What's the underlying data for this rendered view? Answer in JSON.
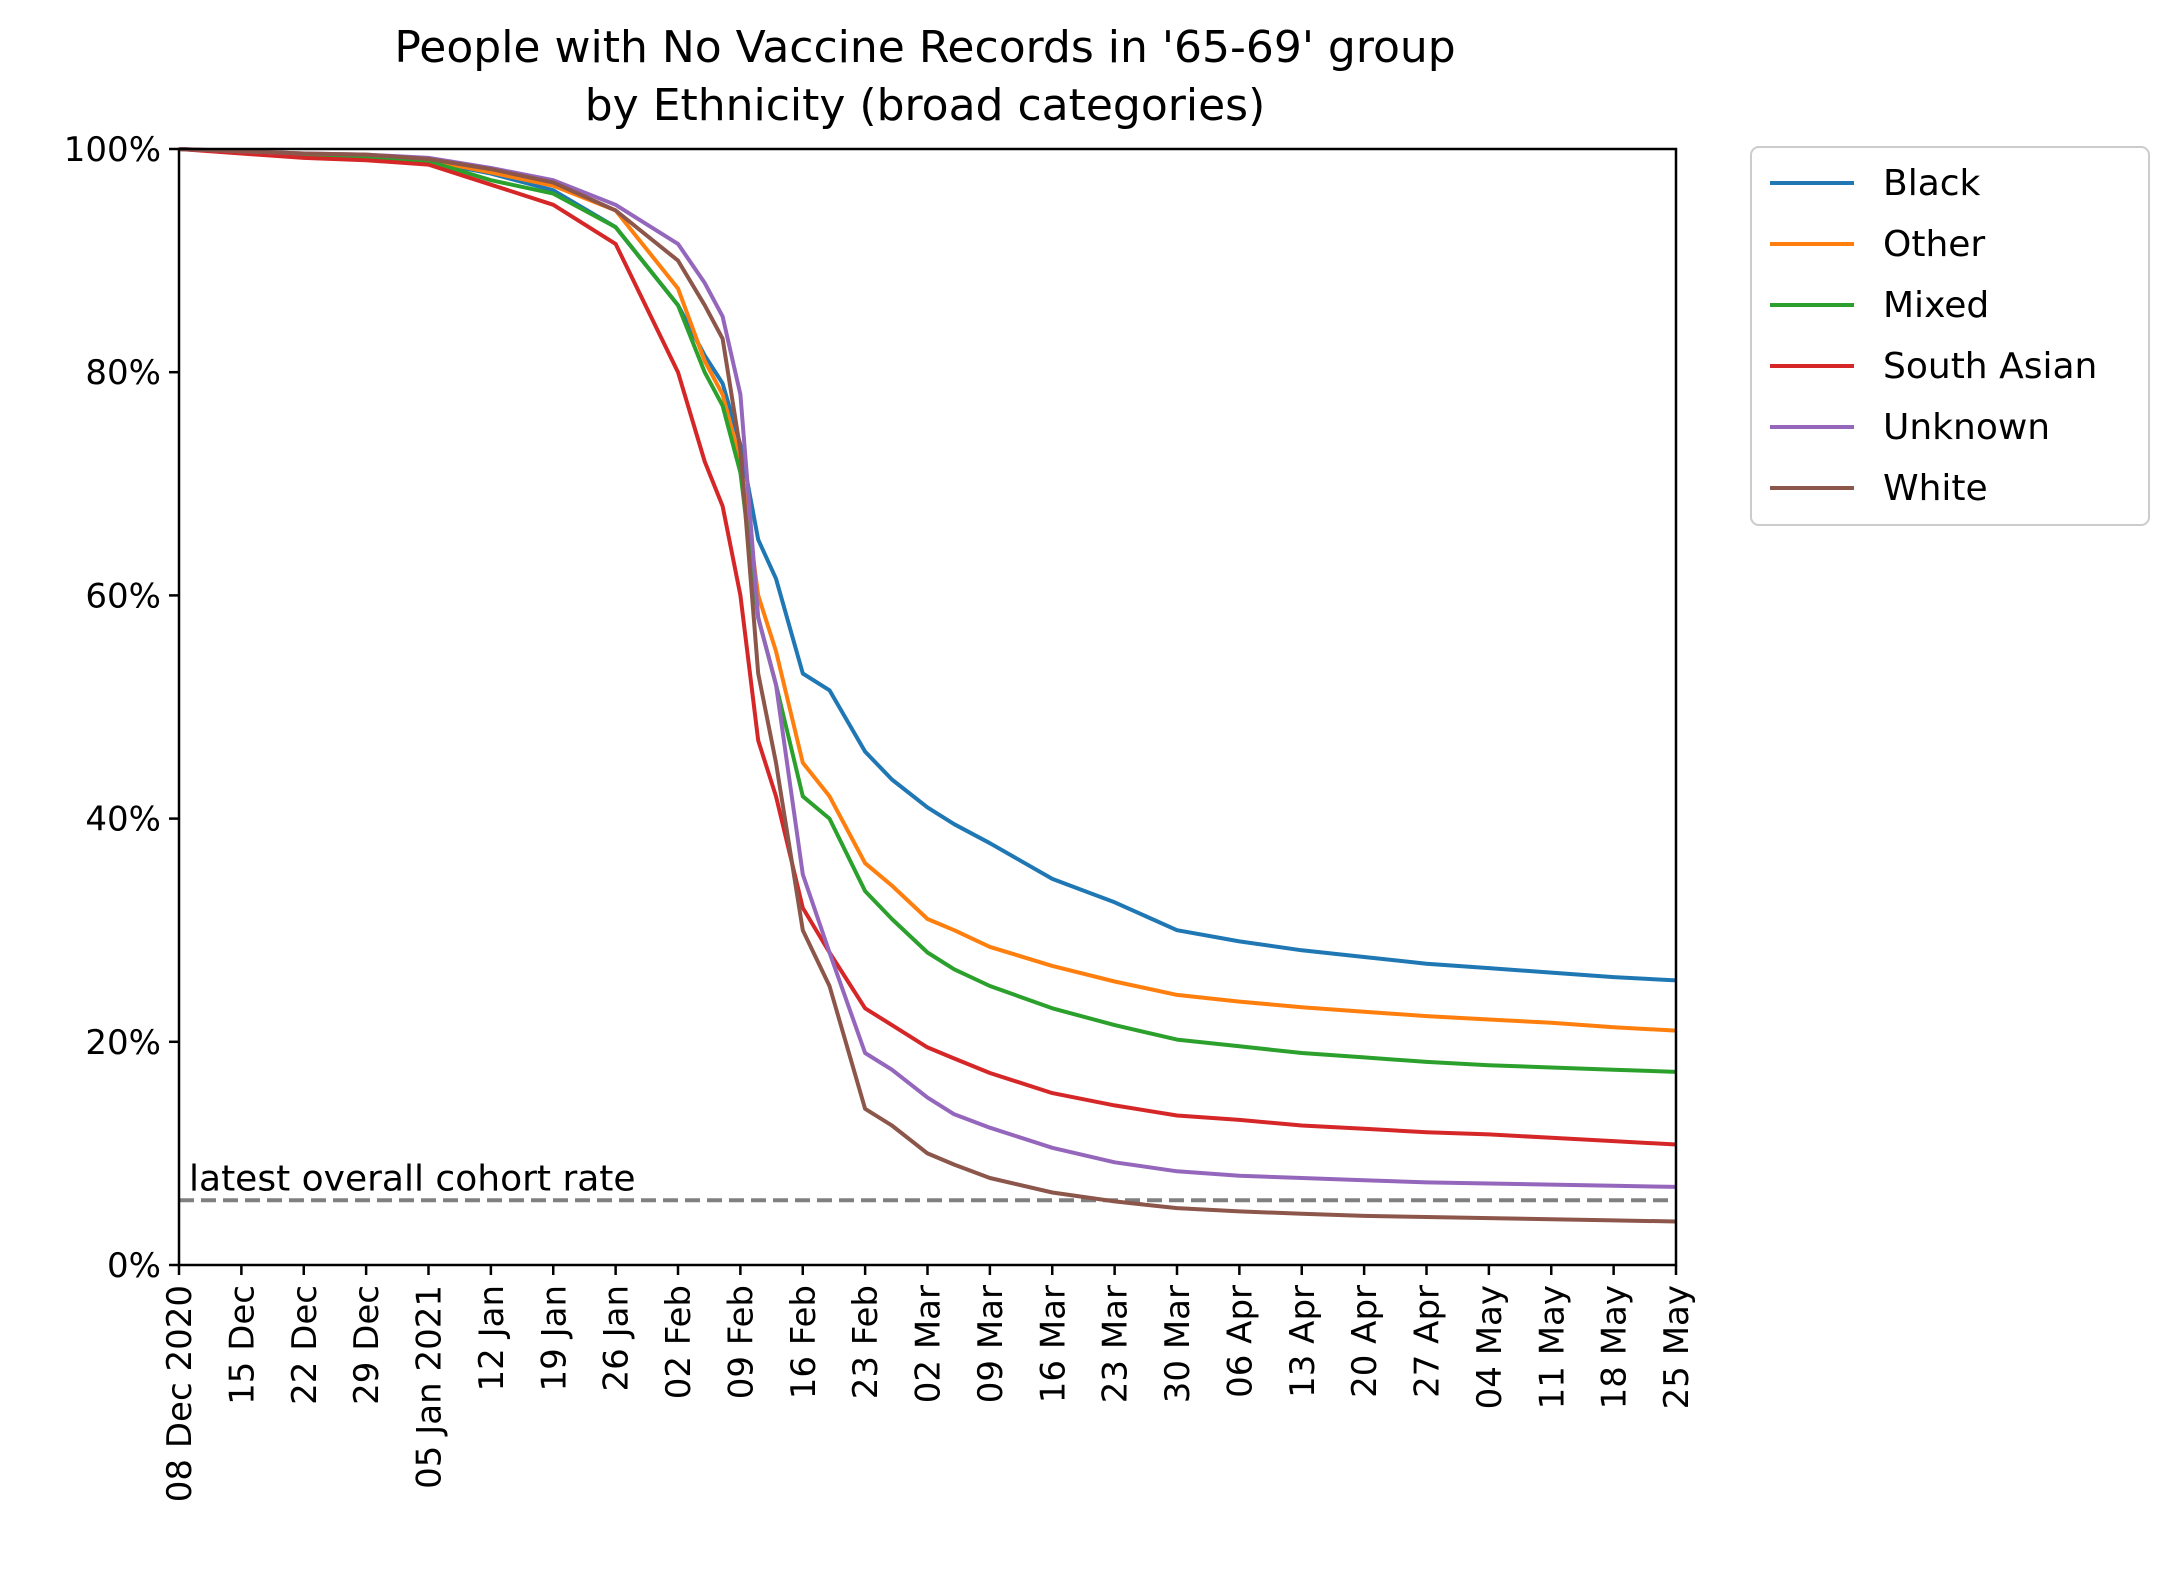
{
  "chart_data": {
    "type": "line",
    "title_line1": "People with No Vaccine Records in '65-69' group",
    "title_line2": "by Ethnicity (broad categories)",
    "xlabel": "",
    "ylabel": "",
    "x_range": [
      "2020-12-08",
      "2021-05-25"
    ],
    "ylim": [
      0,
      100
    ],
    "y_ticks": [
      0,
      20,
      40,
      60,
      80,
      100
    ],
    "y_tick_labels": [
      "0%",
      "20%",
      "40%",
      "60%",
      "80%",
      "100%"
    ],
    "x_ticks": [
      "2020-12-08",
      "2020-12-15",
      "2020-12-22",
      "2020-12-29",
      "2021-01-05",
      "2021-01-12",
      "2021-01-19",
      "2021-01-26",
      "2021-02-02",
      "2021-02-09",
      "2021-02-16",
      "2021-02-23",
      "2021-03-02",
      "2021-03-09",
      "2021-03-16",
      "2021-03-23",
      "2021-03-30",
      "2021-04-06",
      "2021-04-13",
      "2021-04-20",
      "2021-04-27",
      "2021-05-04",
      "2021-05-11",
      "2021-05-18",
      "2021-05-25"
    ],
    "x_tick_labels": [
      "08 Dec 2020",
      "15 Dec",
      "22 Dec",
      "29 Dec",
      "05 Jan 2021",
      "12 Jan",
      "19 Jan",
      "26 Jan",
      "02 Feb",
      "09 Feb",
      "16 Feb",
      "23 Feb",
      "02 Mar",
      "09 Mar",
      "16 Mar",
      "23 Mar",
      "30 Mar",
      "06 Apr",
      "13 Apr",
      "20 Apr",
      "27 Apr",
      "04 May",
      "11 May",
      "18 May",
      "25 May"
    ],
    "grid": false,
    "legend_position": "outside-right-top",
    "reference_line": {
      "value": 5.8,
      "label": "latest overall cohort rate",
      "color": "#808080",
      "style": "dashed"
    },
    "x": [
      "2020-12-08",
      "2020-12-15",
      "2020-12-22",
      "2020-12-29",
      "2021-01-05",
      "2021-01-12",
      "2021-01-19",
      "2021-01-26",
      "2021-02-02",
      "2021-02-05",
      "2021-02-07",
      "2021-02-09",
      "2021-02-11",
      "2021-02-13",
      "2021-02-16",
      "2021-02-19",
      "2021-02-23",
      "2021-02-26",
      "2021-03-02",
      "2021-03-05",
      "2021-03-09",
      "2021-03-16",
      "2021-03-23",
      "2021-03-30",
      "2021-04-06",
      "2021-04-13",
      "2021-04-20",
      "2021-04-27",
      "2021-05-04",
      "2021-05-11",
      "2021-05-18",
      "2021-05-25"
    ],
    "series": [
      {
        "name": "Black",
        "color": "#1f77b4",
        "values": [
          100,
          99.7,
          99.4,
          99.2,
          98.9,
          97.8,
          96.3,
          93.0,
          86.0,
          81.5,
          79.0,
          73.5,
          65.0,
          61.5,
          53.0,
          51.5,
          46.0,
          43.5,
          41.0,
          39.5,
          37.8,
          34.6,
          32.5,
          30.0,
          29.0,
          28.2,
          27.6,
          27.0,
          26.6,
          26.2,
          25.8,
          25.5
        ]
      },
      {
        "name": "Other",
        "color": "#ff7f0e",
        "values": [
          100,
          99.7,
          99.5,
          99.3,
          99.0,
          97.9,
          96.7,
          94.5,
          87.5,
          81.0,
          78.0,
          72.0,
          60.0,
          55.0,
          45.0,
          42.0,
          36.0,
          34.0,
          31.0,
          30.0,
          28.5,
          26.8,
          25.4,
          24.2,
          23.6,
          23.1,
          22.7,
          22.3,
          22.0,
          21.7,
          21.3,
          21.0
        ]
      },
      {
        "name": "Mixed",
        "color": "#2ca02c",
        "values": [
          100,
          99.7,
          99.4,
          99.3,
          98.9,
          97.2,
          96.0,
          93.0,
          86.0,
          80.0,
          77.0,
          71.0,
          58.0,
          52.0,
          42.0,
          40.0,
          33.5,
          31.0,
          28.0,
          26.5,
          25.0,
          23.0,
          21.5,
          20.2,
          19.6,
          19.0,
          18.6,
          18.2,
          17.9,
          17.7,
          17.5,
          17.3
        ]
      },
      {
        "name": "South Asian",
        "color": "#d62728",
        "values": [
          100,
          99.6,
          99.2,
          99.0,
          98.6,
          96.8,
          95.0,
          91.5,
          80.0,
          72.0,
          68.0,
          60.0,
          47.0,
          42.0,
          32.0,
          28.0,
          23.0,
          21.5,
          19.5,
          18.5,
          17.2,
          15.4,
          14.3,
          13.4,
          13.0,
          12.5,
          12.2,
          11.9,
          11.7,
          11.4,
          11.1,
          10.8
        ]
      },
      {
        "name": "Unknown",
        "color": "#9467bd",
        "values": [
          100,
          99.8,
          99.6,
          99.5,
          99.2,
          98.3,
          97.2,
          95.0,
          91.5,
          88.0,
          85.0,
          78.0,
          58.0,
          52.0,
          35.0,
          28.0,
          19.0,
          17.5,
          15.0,
          13.5,
          12.3,
          10.5,
          9.2,
          8.4,
          8.0,
          7.8,
          7.6,
          7.4,
          7.3,
          7.2,
          7.1,
          7.0
        ]
      },
      {
        "name": "White",
        "color": "#8c564b",
        "values": [
          100,
          99.8,
          99.6,
          99.5,
          99.1,
          98.2,
          97.0,
          94.5,
          90.0,
          86.0,
          83.0,
          73.0,
          53.0,
          45.0,
          30.0,
          25.0,
          14.0,
          12.5,
          10.0,
          9.0,
          7.8,
          6.5,
          5.7,
          5.1,
          4.8,
          4.6,
          4.4,
          4.3,
          4.2,
          4.1,
          4.0,
          3.9
        ]
      }
    ]
  }
}
